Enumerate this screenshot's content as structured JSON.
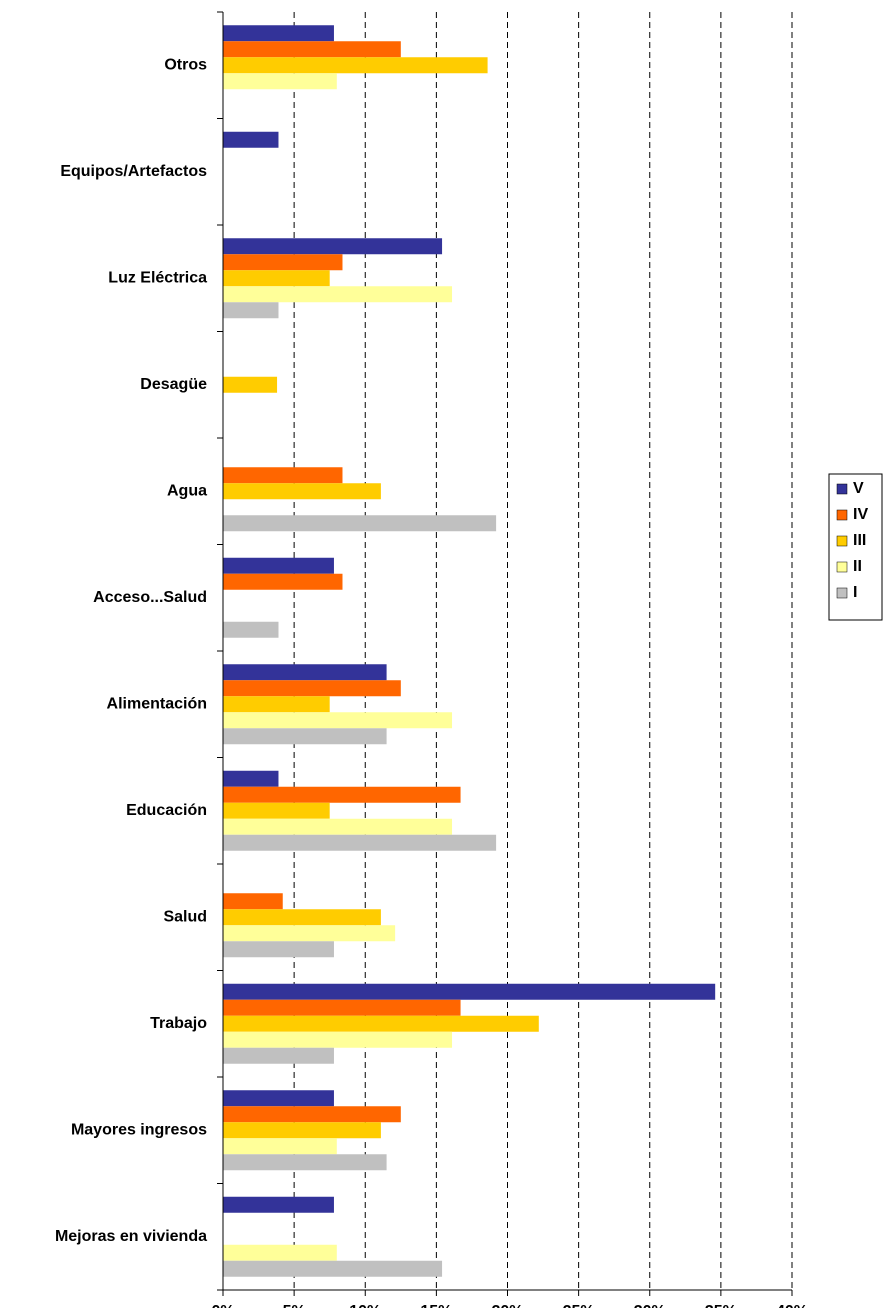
{
  "chart_data": {
    "type": "hbar",
    "categories": [
      "Otros",
      "Equipos/Artefactos",
      "Luz Eléctrica",
      "Desagüe",
      "Agua",
      "Acceso...Salud",
      "Alimentación",
      "Educación",
      "Salud",
      "Trabajo",
      "Mayores ingresos",
      "Mejoras en vivienda"
    ],
    "series": [
      {
        "name": "V",
        "color": "#333399",
        "values": [
          7.8,
          3.9,
          15.4,
          0,
          0,
          7.8,
          11.5,
          3.9,
          0,
          34.6,
          7.8,
          7.8
        ]
      },
      {
        "name": "IV",
        "color": "#ff6600",
        "values": [
          12.5,
          0,
          8.4,
          0,
          8.4,
          8.4,
          12.5,
          16.7,
          4.2,
          16.7,
          12.5,
          0
        ]
      },
      {
        "name": "III",
        "color": "#ffcc00",
        "values": [
          18.6,
          0,
          7.5,
          3.8,
          11.1,
          0,
          7.5,
          7.5,
          11.1,
          22.2,
          11.1,
          0
        ]
      },
      {
        "name": "II",
        "color": "#ffff99",
        "values": [
          8.0,
          0,
          16.1,
          0,
          0,
          0,
          16.1,
          16.1,
          12.1,
          16.1,
          8.0,
          8.0
        ]
      },
      {
        "name": "I",
        "color": "#c0c0c0",
        "values": [
          0,
          0,
          3.9,
          0,
          19.2,
          3.9,
          11.5,
          19.2,
          7.8,
          7.8,
          11.5,
          15.4
        ]
      }
    ],
    "xlim": [
      0,
      40
    ],
    "xticks": [
      {
        "value": 0,
        "label": "0%"
      },
      {
        "value": 5,
        "label": "5%"
      },
      {
        "value": 10,
        "label": "10%"
      },
      {
        "value": 15,
        "label": "15%"
      },
      {
        "value": 20,
        "label": "20%"
      },
      {
        "value": 25,
        "label": "25%"
      },
      {
        "value": 30,
        "label": "30%"
      },
      {
        "value": 35,
        "label": "35%"
      },
      {
        "value": 40,
        "label": "40%"
      }
    ],
    "grid": true,
    "legend": "right"
  }
}
